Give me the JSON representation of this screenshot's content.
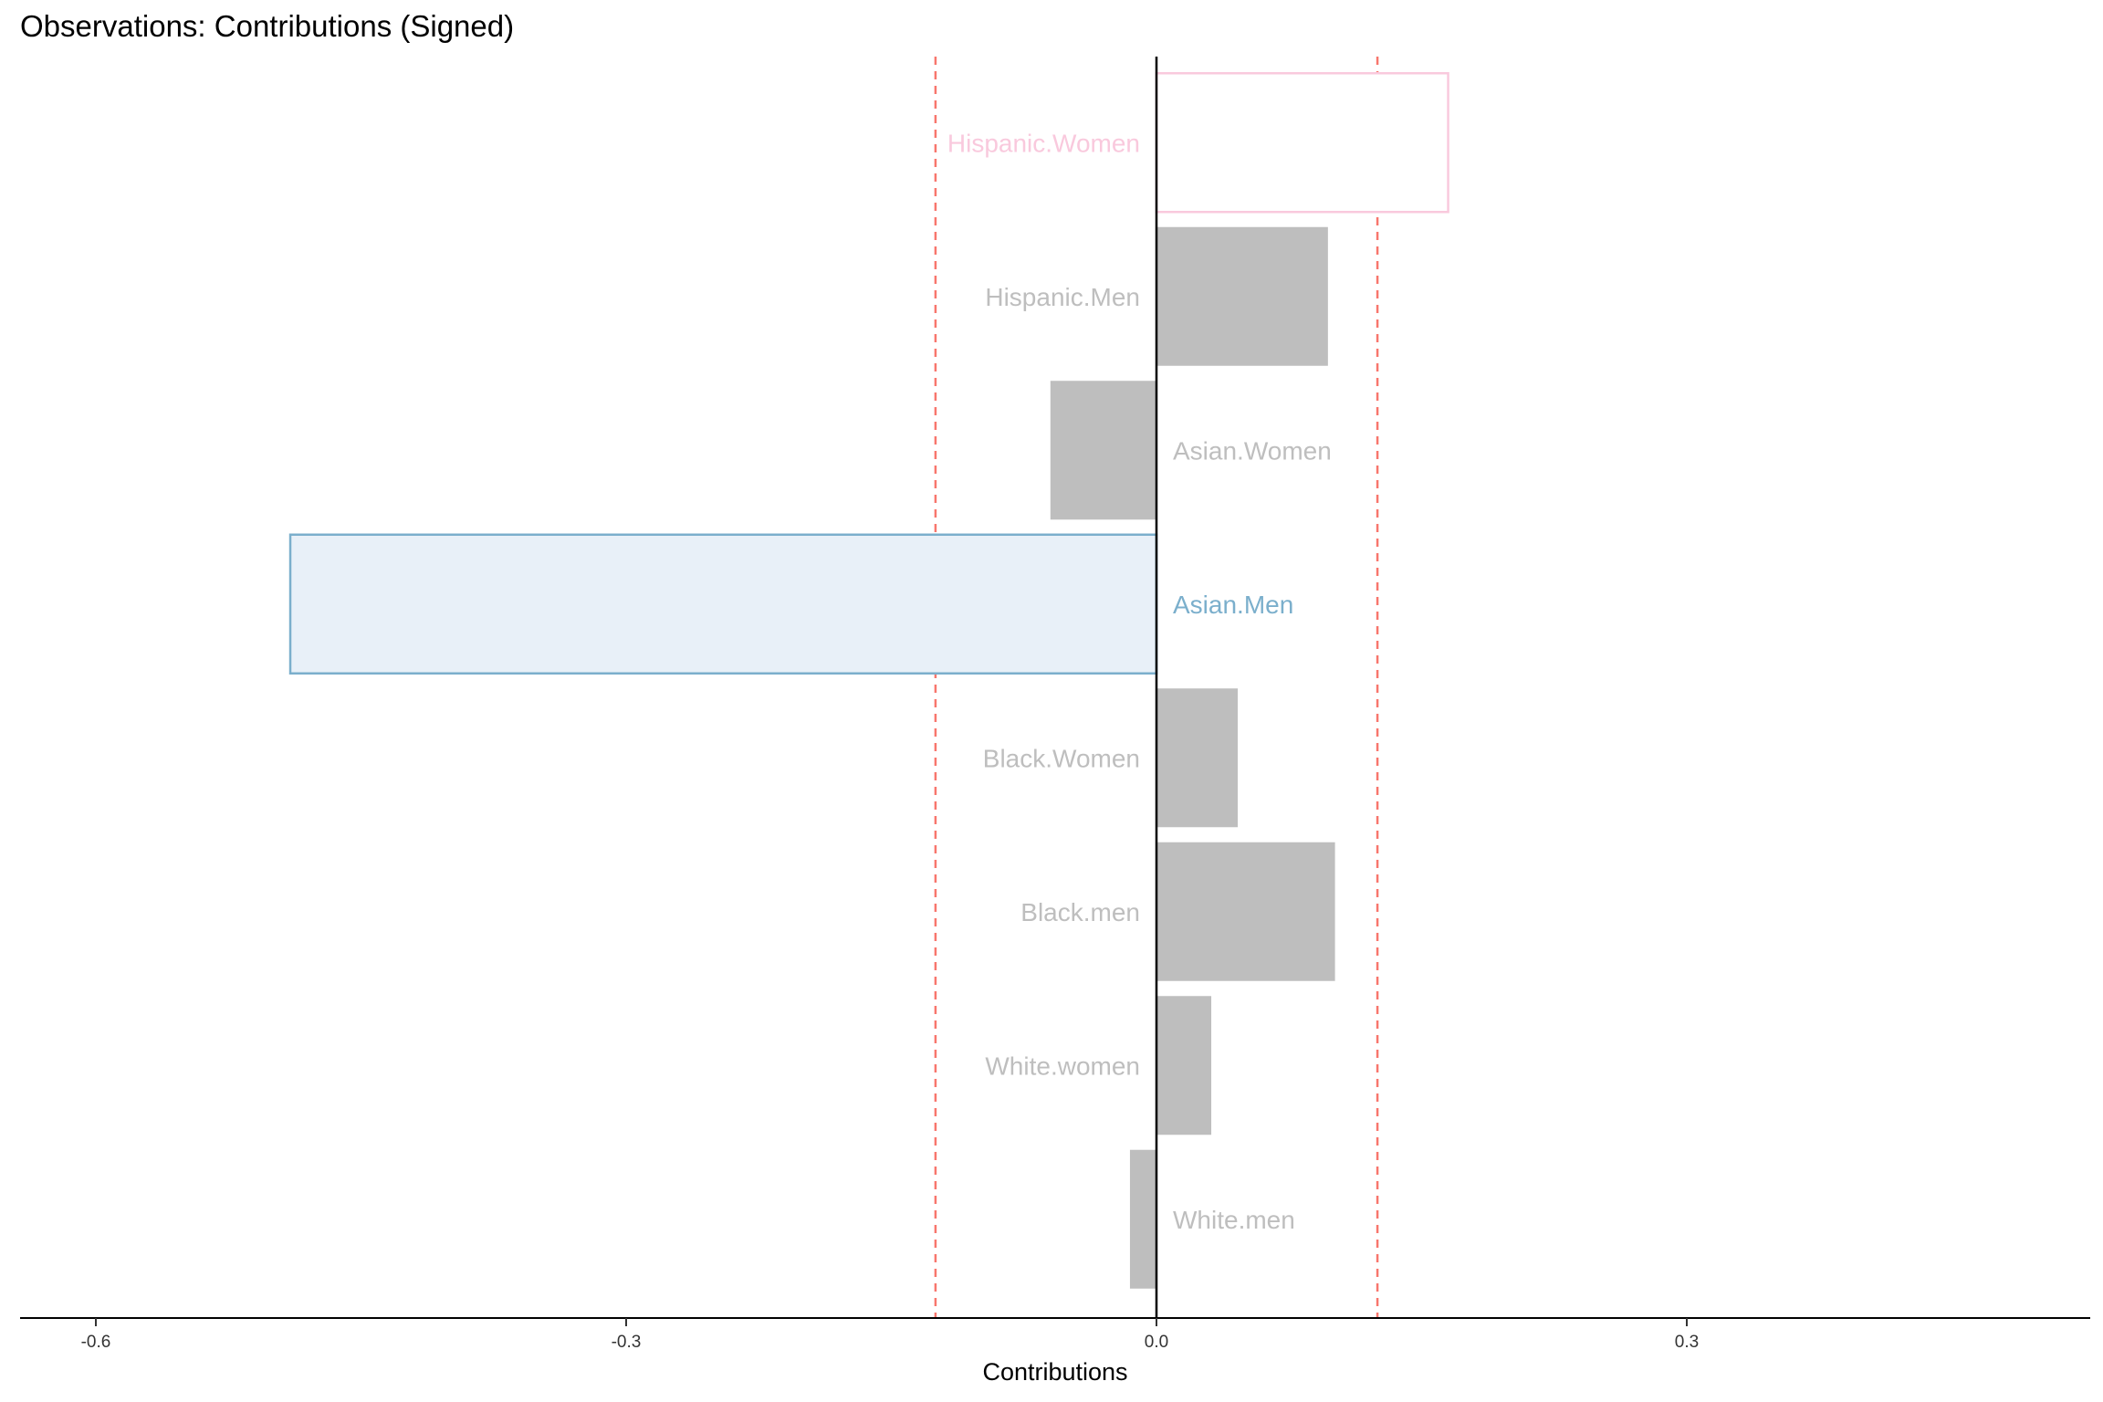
{
  "chart_data": {
    "type": "bar",
    "orientation": "horizontal",
    "title": "Observations: Contributions (Signed)",
    "xlabel": "Contributions",
    "ylabel": "",
    "xlim": [
      -0.64,
      0.53
    ],
    "xticks": [
      -0.6,
      -0.3,
      0.0,
      0.3
    ],
    "xtick_labels": [
      "-0.6",
      "-0.3",
      "0.0",
      "0.3"
    ],
    "threshold_lines": [
      -0.125,
      0.125
    ],
    "threshold_color": "#F8766D",
    "categories": [
      "Hispanic.Women",
      "Hispanic.Men",
      "Asian.Women",
      "Asian.Men",
      "Black.Women",
      "Black.men",
      "White.women",
      "White.men"
    ],
    "values": [
      0.165,
      0.097,
      -0.06,
      -0.49,
      0.046,
      0.101,
      0.031,
      -0.015
    ],
    "highlight": {
      "Hispanic.Women": {
        "stroke": "#F9C9DD",
        "fill": "#FFFFFF",
        "label_color": "#F9C9DD"
      },
      "Asian.Men": {
        "stroke": "#7BAFCC",
        "fill": "#E8F0F8",
        "label_color": "#7BAFCC"
      }
    },
    "default_fill": "#BEBEBE",
    "default_label_color": "#BEBEBE",
    "grid": false,
    "legend": "none"
  }
}
